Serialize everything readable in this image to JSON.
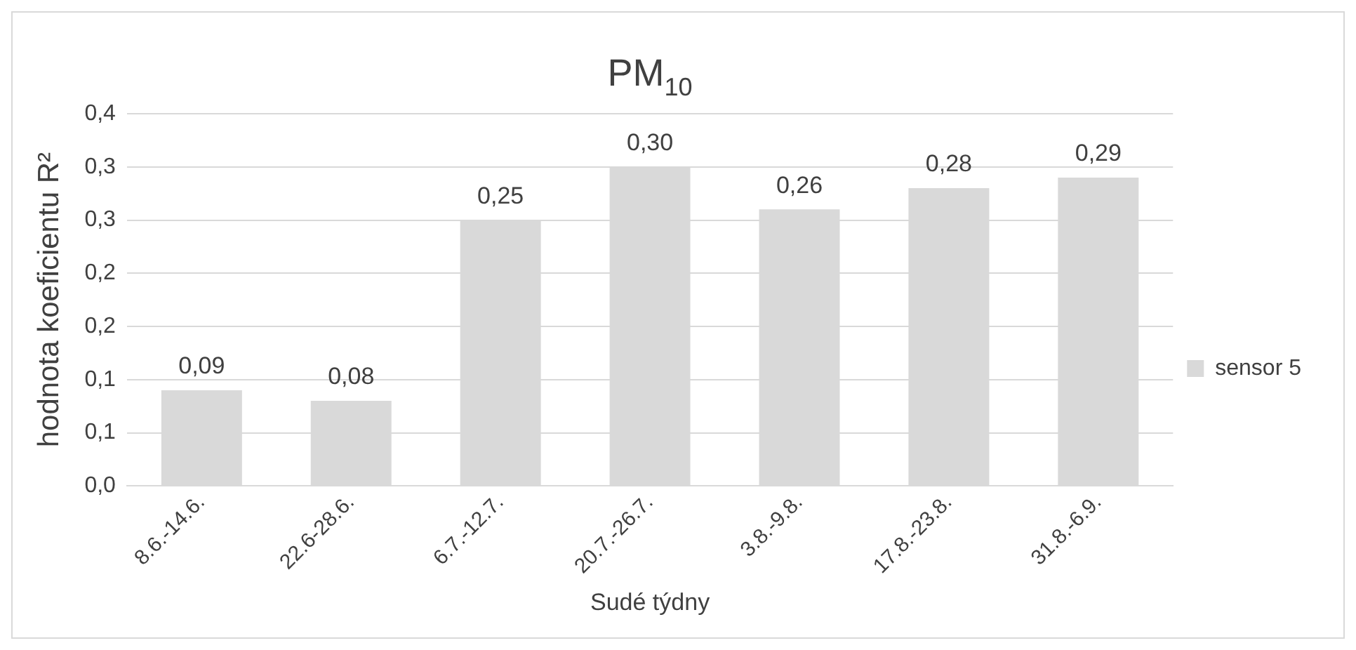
{
  "chart_data": {
    "type": "bar",
    "title": "PM$_{10}$",
    "xlabel": "Sudé týdny",
    "ylabel": "hodnota koeficientu R²",
    "categories": [
      "8.6.-14.6.",
      "22.6-28.6.",
      "6.7.-12.7.",
      "20.7.-26.7.",
      "3.8.-9.8.",
      "17.8.-23.8.",
      "31.8.-6.9."
    ],
    "series": [
      {
        "name": "sensor 5",
        "color": "#d9d9d9",
        "values": [
          0.09,
          0.08,
          0.25,
          0.3,
          0.26,
          0.28,
          0.29
        ],
        "value_labels": [
          "0,09",
          "0,08",
          "0,25",
          "0,30",
          "0,26",
          "0,28",
          "0,29"
        ]
      }
    ],
    "ylim": [
      0,
      0.35
    ],
    "yticks": [
      {
        "value": 0,
        "label": "0,0"
      },
      {
        "value": 0.05,
        "label": "0,1"
      },
      {
        "value": 0.1,
        "label": "0,1"
      },
      {
        "value": 0.15,
        "label": "0,2"
      },
      {
        "value": 0.2,
        "label": "0,2"
      },
      {
        "value": 0.25,
        "label": "0,3"
      },
      {
        "value": 0.3,
        "label": "0,3"
      },
      {
        "value": 0.35,
        "label": "0,4"
      }
    ],
    "grid": "y",
    "legend": "right"
  }
}
